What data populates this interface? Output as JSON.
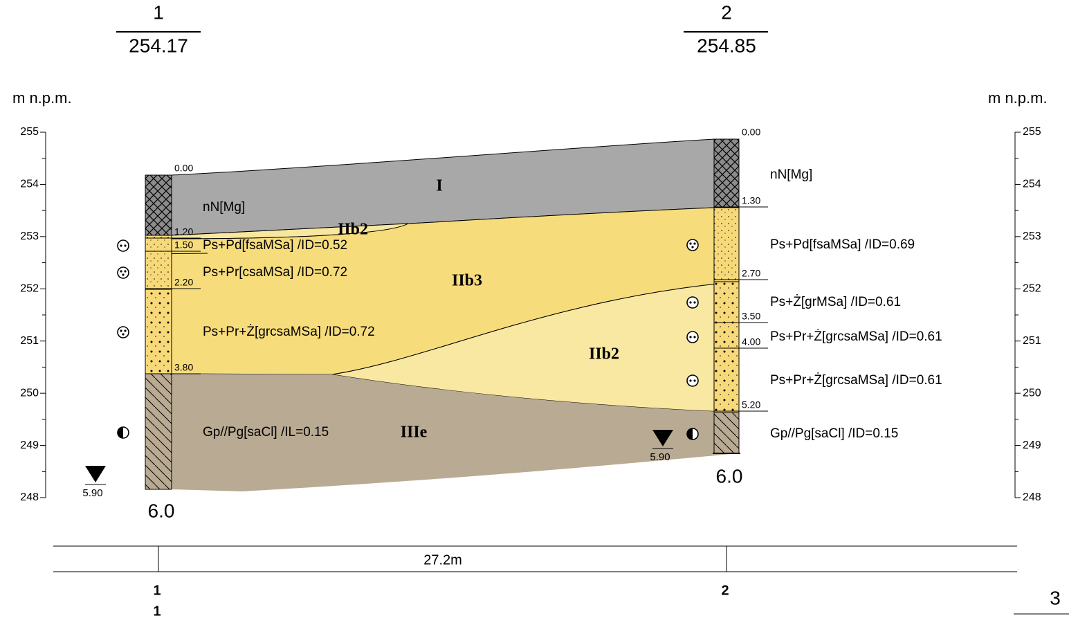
{
  "header": {
    "unit_left": "m n.p.m.",
    "unit_right": "m n.p.m.",
    "sheet": "3"
  },
  "axis": {
    "ticks": [
      255,
      254,
      253,
      252,
      251,
      250,
      249,
      248
    ]
  },
  "boreholes": [
    {
      "name": "1",
      "elevation": "254.17",
      "final_depth": "6.0",
      "water_level": "5.90",
      "depths": [
        "0.00",
        "1.20",
        "1.50",
        "2.20",
        "3.80"
      ],
      "layers": [
        "nN[Mg]",
        "Ps+Pd[fsaMSa] /ID=0.52",
        "Ps+Pr[csaMSa] /ID=0.72",
        "Ps+Pr+Ż[grcsaMSa] /ID=0.72",
        "Gp//Pg[saCl] /IL=0.15"
      ],
      "footer": [
        "1",
        "1"
      ]
    },
    {
      "name": "2",
      "elevation": "254.85",
      "final_depth": "6.0",
      "water_level": "5.90",
      "depths": [
        "0.00",
        "1.30",
        "2.70",
        "3.50",
        "4.00",
        "5.20"
      ],
      "layers": [
        "nN[Mg]",
        "Ps+Pd[fsaMSa] /ID=0.69",
        "Ps+Ż[grMSa] /ID=0.61",
        "Ps+Pr+Ż[grcsaMSa] /ID=0.61",
        "Ps+Pr+Ż[grcsaMSa] /ID=0.61",
        "Gp//Pg[saCl] /ID=0.15"
      ],
      "footer": [
        "2"
      ]
    }
  ],
  "strata_labels": [
    "I",
    "IIb2",
    "IIb3",
    "IIb2",
    "IIIe"
  ],
  "distance": "27.2m"
}
